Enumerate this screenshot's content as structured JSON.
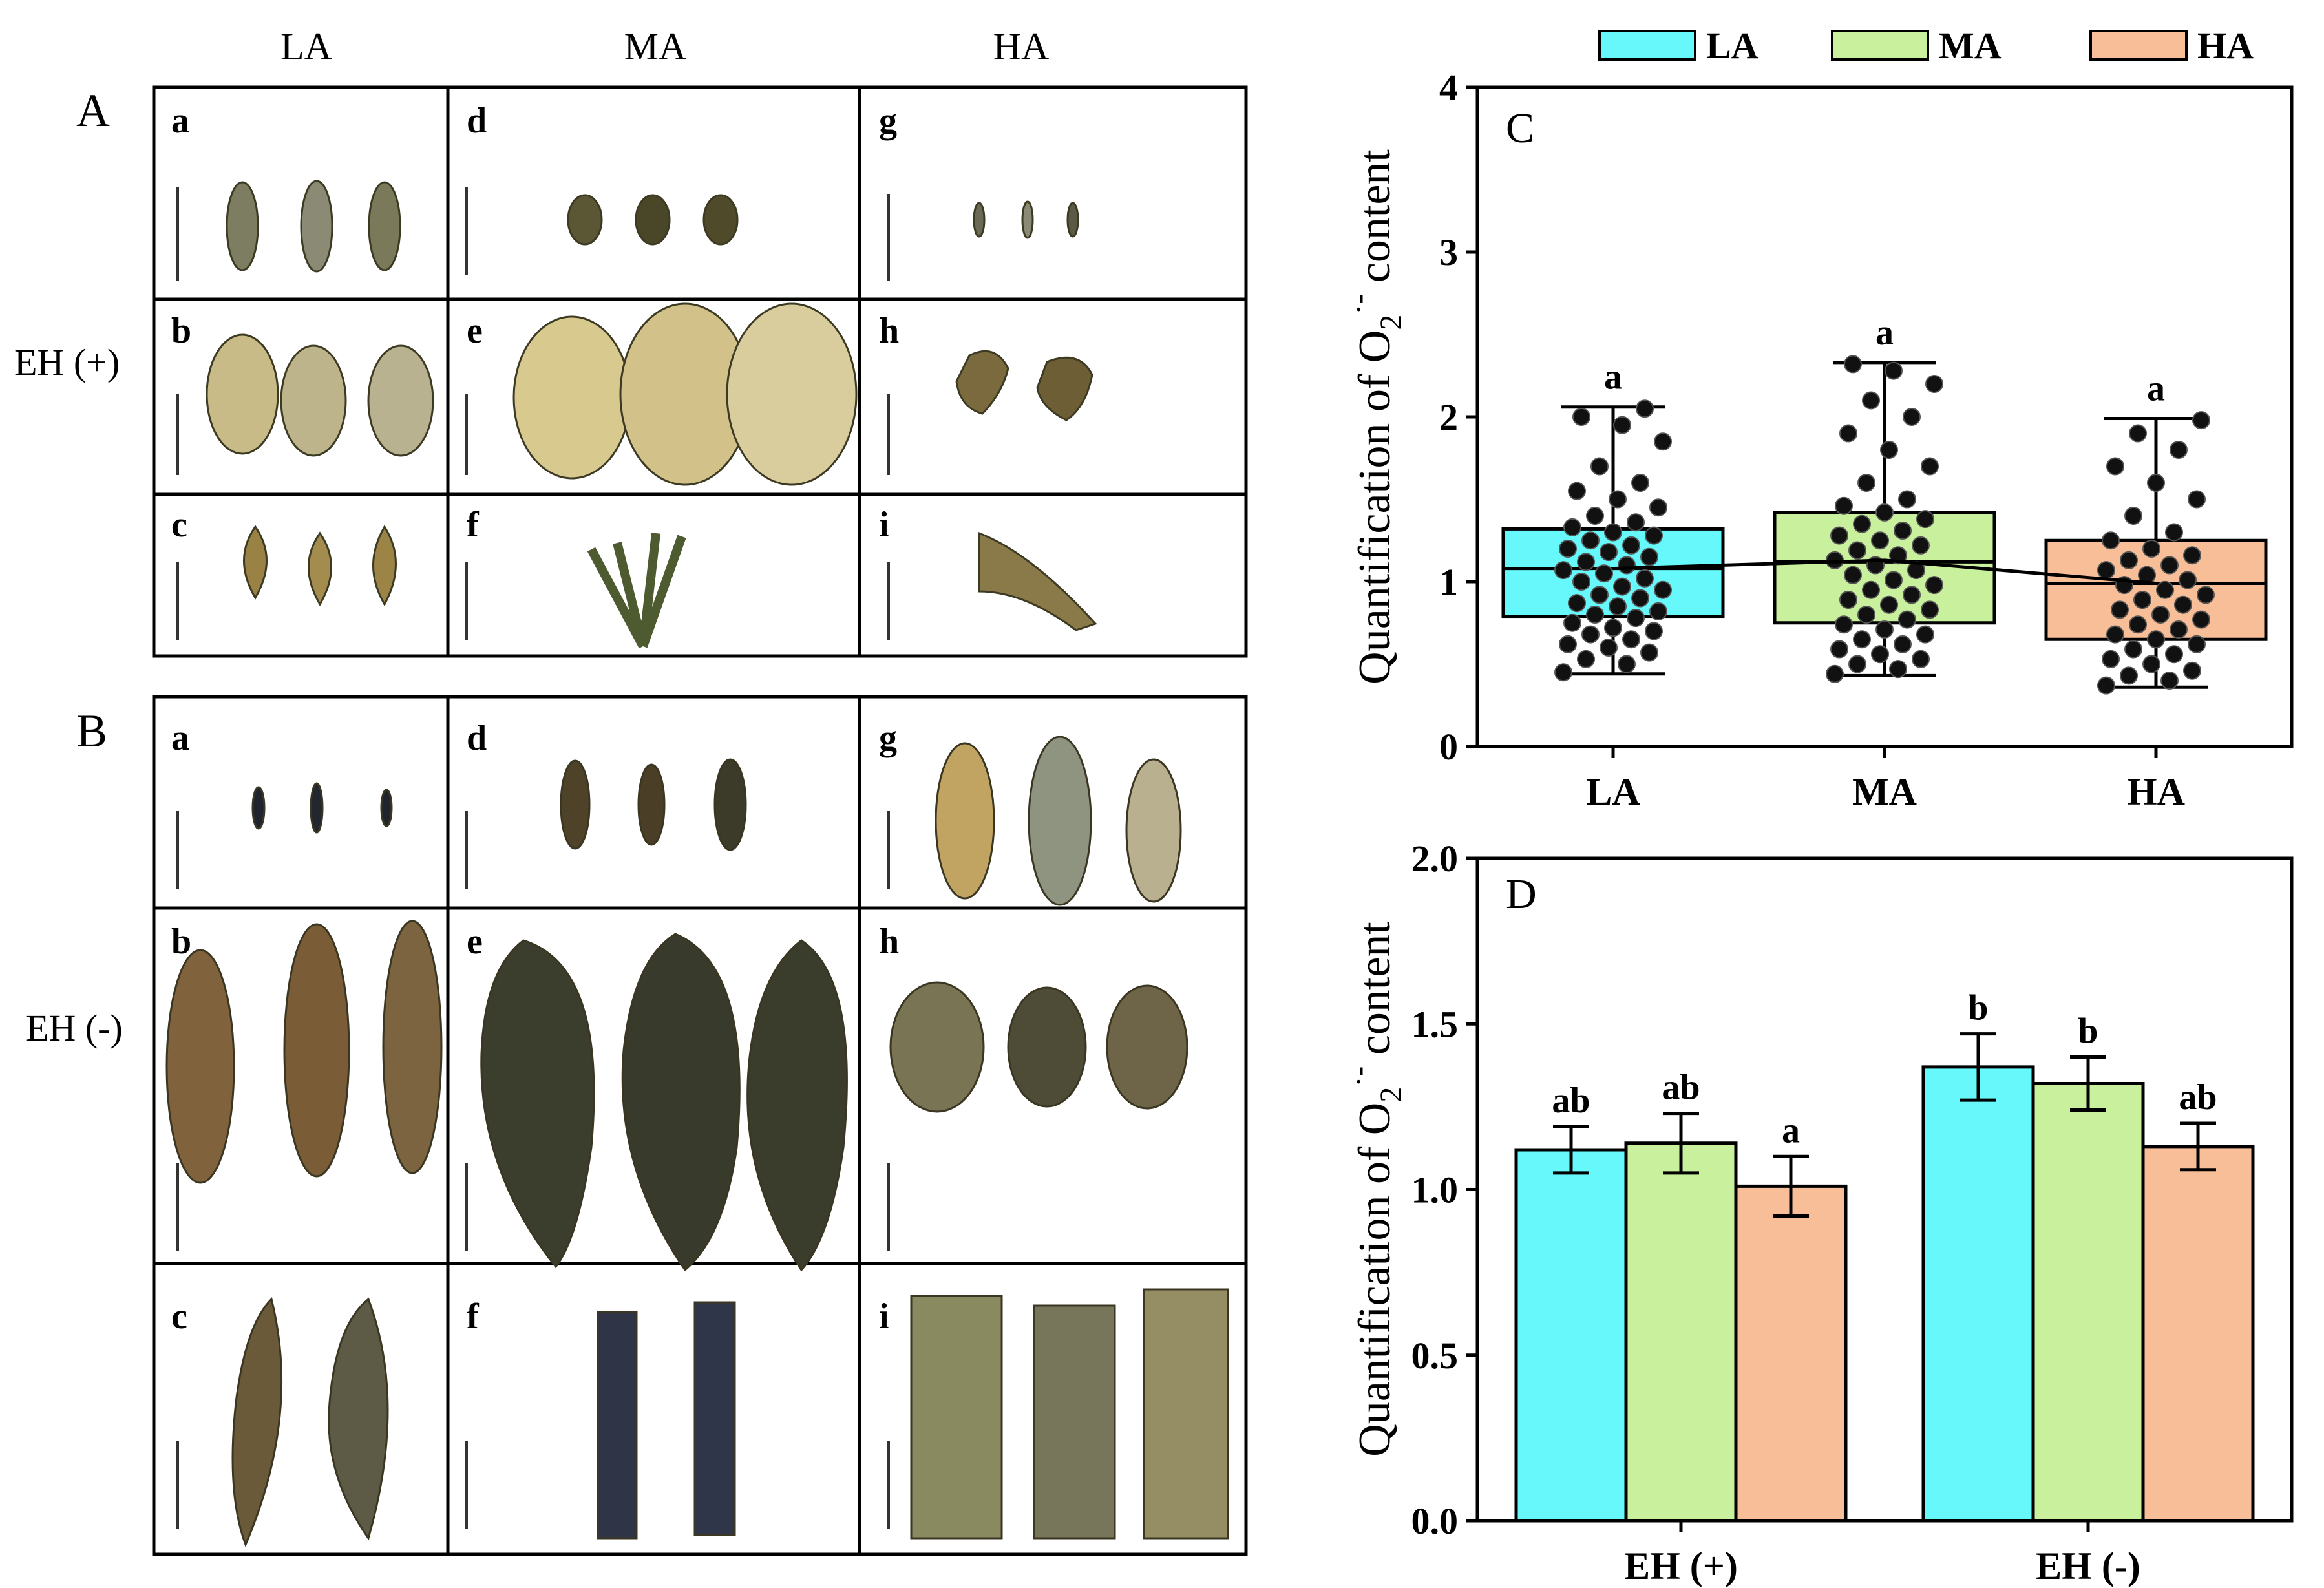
{
  "columns": [
    "LA",
    "MA",
    "HA"
  ],
  "panel_A": {
    "label": "A",
    "row_label": "EH (+)",
    "cells": [
      "a",
      "b",
      "c",
      "d",
      "e",
      "f",
      "g",
      "h",
      "i"
    ]
  },
  "panel_B": {
    "label": "B",
    "row_label": "EH (-)",
    "cells": [
      "a",
      "b",
      "c",
      "d",
      "e",
      "f",
      "g",
      "h",
      "i"
    ]
  },
  "legend": [
    {
      "label": "LA",
      "color": "#66F8FA"
    },
    {
      "label": "MA",
      "color": "#C9F19D"
    },
    {
      "label": "HA",
      "color": "#F8BE98"
    }
  ],
  "chart_data": [
    {
      "panel": "C",
      "type": "box",
      "ylabel": "Quantification of O2·- content",
      "ylim": [
        0,
        4
      ],
      "yticks": [
        0,
        1,
        2,
        3,
        4
      ],
      "categories": [
        "LA",
        "MA",
        "HA"
      ],
      "boxes": [
        {
          "name": "LA",
          "min": 0.44,
          "q1": 0.79,
          "median": 1.08,
          "q3": 1.32,
          "max": 2.06,
          "mean": 1.08,
          "letter": "a",
          "color": "#66F8FA"
        },
        {
          "name": "MA",
          "min": 0.43,
          "q1": 0.75,
          "median": 1.12,
          "q3": 1.42,
          "max": 2.33,
          "mean": 1.13,
          "letter": "a",
          "color": "#C9F19D"
        },
        {
          "name": "HA",
          "min": 0.36,
          "q1": 0.65,
          "median": 0.99,
          "q3": 1.25,
          "max": 1.99,
          "mean": 0.99,
          "letter": "a",
          "color": "#F8BE98"
        }
      ],
      "points": {
        "LA": [
          0.45,
          0.5,
          0.53,
          0.57,
          0.6,
          0.62,
          0.65,
          0.68,
          0.7,
          0.72,
          0.75,
          0.78,
          0.8,
          0.82,
          0.85,
          0.87,
          0.9,
          0.92,
          0.95,
          0.97,
          1.0,
          1.02,
          1.05,
          1.07,
          1.1,
          1.12,
          1.15,
          1.18,
          1.2,
          1.22,
          1.25,
          1.28,
          1.3,
          1.33,
          1.36,
          1.4,
          1.45,
          1.5,
          1.55,
          1.6,
          1.7,
          1.85,
          1.95,
          2.0,
          2.05
        ],
        "MA": [
          0.44,
          0.47,
          0.5,
          0.53,
          0.56,
          0.59,
          0.62,
          0.65,
          0.68,
          0.71,
          0.74,
          0.77,
          0.8,
          0.83,
          0.86,
          0.89,
          0.92,
          0.95,
          0.98,
          1.01,
          1.04,
          1.07,
          1.1,
          1.13,
          1.16,
          1.19,
          1.22,
          1.25,
          1.28,
          1.31,
          1.35,
          1.38,
          1.42,
          1.46,
          1.5,
          1.6,
          1.7,
          1.8,
          1.9,
          2.0,
          2.1,
          2.2,
          2.28,
          2.32
        ],
        "HA": [
          0.37,
          0.4,
          0.43,
          0.46,
          0.5,
          0.53,
          0.56,
          0.59,
          0.62,
          0.65,
          0.68,
          0.71,
          0.74,
          0.77,
          0.8,
          0.83,
          0.86,
          0.89,
          0.92,
          0.95,
          0.98,
          1.01,
          1.04,
          1.07,
          1.1,
          1.13,
          1.16,
          1.2,
          1.25,
          1.3,
          1.4,
          1.5,
          1.6,
          1.7,
          1.8,
          1.9,
          1.98
        ]
      }
    },
    {
      "panel": "D",
      "type": "bar",
      "ylabel": "Quantification of O2·- content",
      "ylim": [
        0,
        2.0
      ],
      "yticks": [
        0.0,
        0.5,
        1.0,
        1.5,
        2.0
      ],
      "categories": [
        "EH (+)",
        "EH (-)"
      ],
      "series": [
        {
          "name": "LA",
          "color": "#66F8FA",
          "values": [
            1.12,
            1.37
          ],
          "errors": [
            0.07,
            0.1
          ],
          "letters": [
            "ab",
            "b"
          ]
        },
        {
          "name": "MA",
          "color": "#C9F19D",
          "values": [
            1.14,
            1.32
          ],
          "errors": [
            0.09,
            0.08
          ],
          "letters": [
            "ab",
            "b"
          ]
        },
        {
          "name": "HA",
          "color": "#F8BE98",
          "values": [
            1.01,
            1.13
          ],
          "errors": [
            0.09,
            0.07
          ],
          "letters": [
            "a",
            "ab"
          ]
        }
      ]
    }
  ]
}
